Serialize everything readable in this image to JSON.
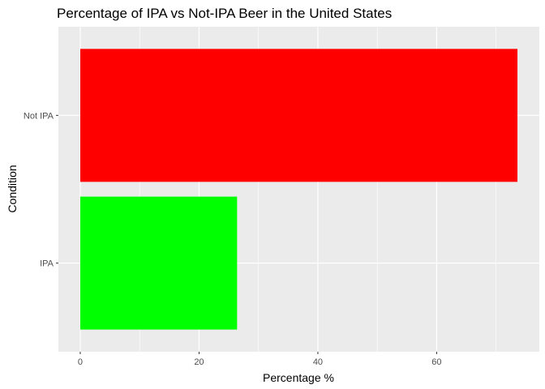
{
  "chart_data": {
    "type": "bar",
    "orientation": "horizontal",
    "title": "Percentage of IPA vs Not-IPA Beer in the United States",
    "xlabel": "Percentage %",
    "ylabel": "Condition",
    "categories": [
      "IPA",
      "Not IPA"
    ],
    "values": [
      26.4,
      73.6
    ],
    "colors": [
      "#00ff00",
      "#ff0000"
    ],
    "xlim": [
      -3.68,
      77.28
    ],
    "xticks": [
      0,
      20,
      40,
      60
    ],
    "xtick_labels": [
      "0",
      "20",
      "40",
      "60"
    ],
    "grid": true,
    "legend": "none",
    "panel_background": "#ebebeb",
    "grid_color": "#ffffff"
  }
}
